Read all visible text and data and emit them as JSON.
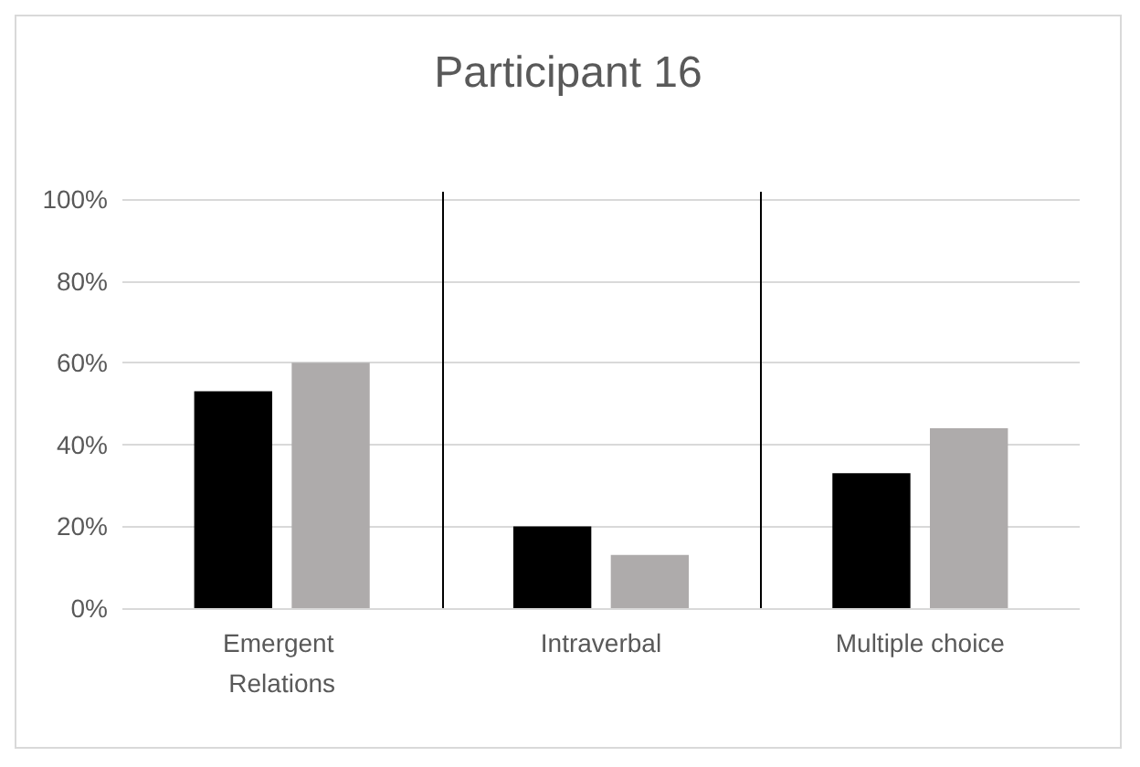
{
  "chart_data": {
    "type": "bar",
    "title": "Participant 16",
    "categories": [
      "Emergent Relations",
      "Intraverbal",
      "Multiple choice"
    ],
    "series": [
      {
        "color": "#000000",
        "values": [
          53,
          20,
          33
        ]
      },
      {
        "color": "#aeabab",
        "values": [
          60,
          13,
          44
        ]
      }
    ],
    "ylim": [
      0,
      100
    ],
    "yticks": [
      {
        "value": 0,
        "label": "0%"
      },
      {
        "value": 20,
        "label": "20%"
      },
      {
        "value": 40,
        "label": "40%"
      },
      {
        "value": 60,
        "label": "60%"
      },
      {
        "value": 80,
        "label": "80%"
      },
      {
        "value": 100,
        "label": "100%"
      }
    ],
    "grid": "y"
  }
}
